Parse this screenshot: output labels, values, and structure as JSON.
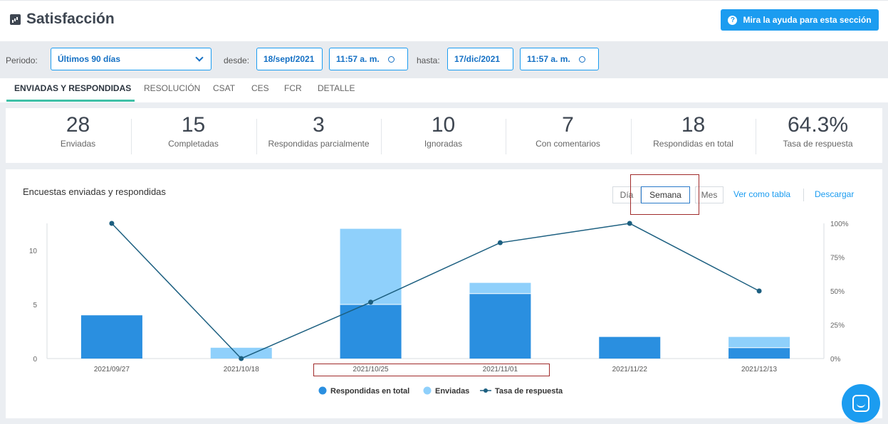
{
  "header": {
    "title": "Satisfacción",
    "help_label": "Mira la ayuda para esta sección"
  },
  "filters": {
    "period_label": "Periodo:",
    "period_value": "Últimos 90 días",
    "from_label": "desde:",
    "from_date": "18/sept/2021",
    "from_time": "11:57 a. m.",
    "to_label": "hasta:",
    "to_date": "17/dic/2021",
    "to_time": "11:57 a. m."
  },
  "tabs": [
    {
      "label": "ENVIADAS Y RESPONDIDAS",
      "active": true
    },
    {
      "label": "RESOLUCIÓN"
    },
    {
      "label": "CSAT"
    },
    {
      "label": "CES"
    },
    {
      "label": "FCR"
    },
    {
      "label": "DETALLE"
    }
  ],
  "stats": [
    {
      "value": "28",
      "label": "Enviadas"
    },
    {
      "value": "15",
      "label": "Completadas"
    },
    {
      "value": "3",
      "label": "Respondidas parcialmente"
    },
    {
      "value": "10",
      "label": "Ignoradas"
    },
    {
      "value": "7",
      "label": "Con comentarios"
    },
    {
      "value": "18",
      "label": "Respondidas en total"
    },
    {
      "value": "64.3%",
      "label": "Tasa de respuesta"
    }
  ],
  "chart_section": {
    "title": "Encuestas enviadas y respondidas",
    "granularity": [
      "Día",
      "Semana",
      "Mes"
    ],
    "selected_granularity": "Semana",
    "table_link": "Ver como tabla",
    "download_link": "Descargar"
  },
  "colors": {
    "accent": "#1b9cf0",
    "answered": "#2a8fe0",
    "sent": "#8fd0fb",
    "rate_line": "#1c5f80",
    "tab_underline": "#3fc0a7",
    "highlight": "#a02a2a"
  },
  "chart_data": {
    "type": "bar",
    "categories": [
      "2021/09/27",
      "2021/10/18",
      "2021/10/25",
      "2021/11/01",
      "2021/11/22",
      "2021/12/13"
    ],
    "series": [
      {
        "name": "Respondidas en total",
        "values": [
          4,
          0,
          5,
          6,
          2,
          1
        ]
      },
      {
        "name": "Enviadas",
        "values": [
          4,
          1,
          12,
          7,
          2,
          2
        ]
      },
      {
        "name": "Tasa de respuesta",
        "values": [
          100,
          0,
          41.7,
          85.7,
          100,
          50
        ]
      }
    ],
    "y_ticks": [
      "0",
      "5",
      "10"
    ],
    "y2_ticks": [
      "0%",
      "25%",
      "50%",
      "75%",
      "100%"
    ],
    "ylim": [
      0,
      12.5
    ],
    "y2lim": [
      0,
      100
    ],
    "legend": "bottom"
  }
}
